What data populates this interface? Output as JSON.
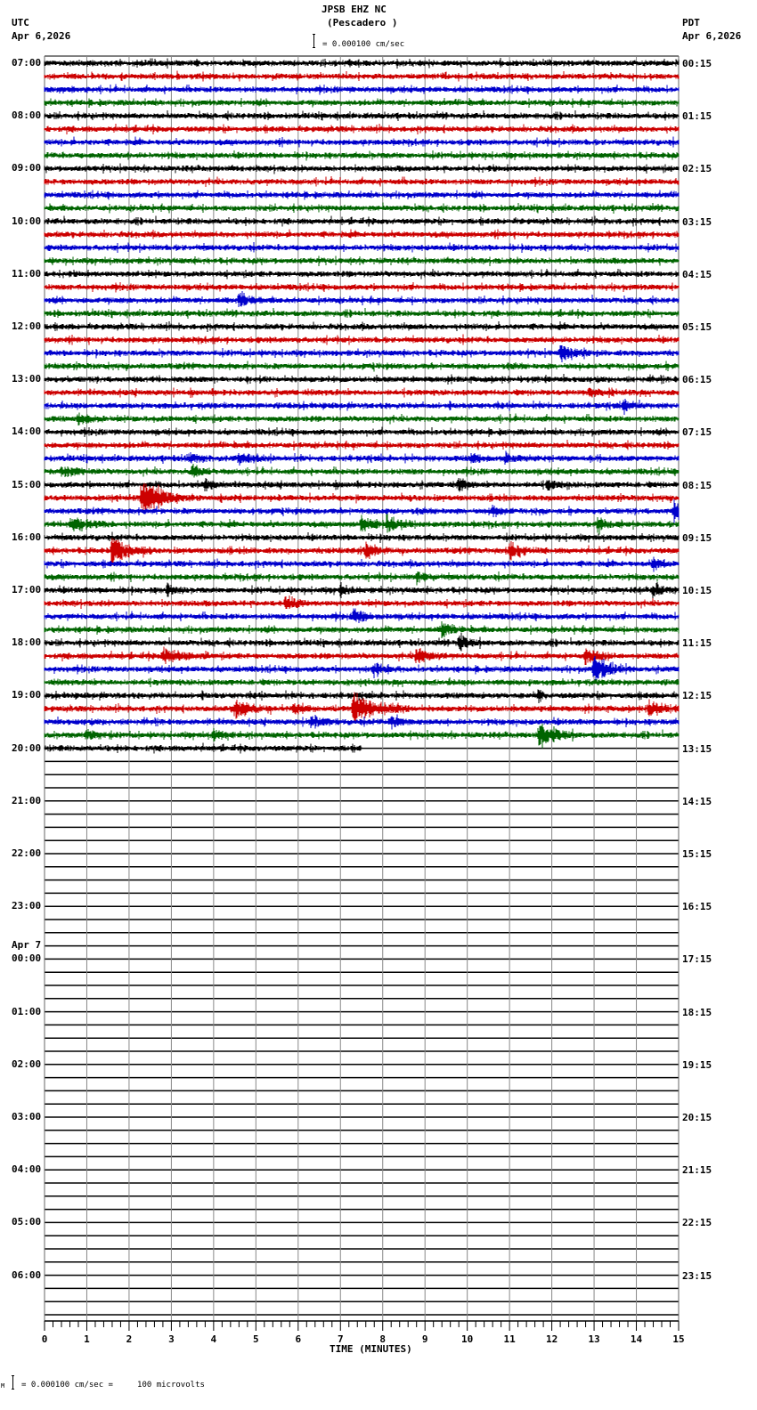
{
  "header": {
    "station": "JPSB EHZ NC",
    "location": "(Pescadero )",
    "left_tz": "UTC",
    "left_date": "Apr 6,2026",
    "right_tz": "PDT",
    "right_date": "Apr 6,2026",
    "scale_text": "= 0.000100 cm/sec"
  },
  "footer": {
    "scale_text": "= 0.000100 cm/sec =     100 microvolts",
    "prefix": "M"
  },
  "colors": {
    "trace_cycle": [
      "#000000",
      "#cc0000",
      "#0000cc",
      "#006400"
    ],
    "grid": "#808080",
    "frame": "#000000"
  },
  "chart_data": {
    "type": "helicorder",
    "title": "JPSB EHZ NC (Pescadero )",
    "xlabel": "TIME (MINUTES)",
    "ylabel_left": "UTC",
    "ylabel_right": "PDT",
    "xlim": [
      0,
      15
    ],
    "x_ticks": [
      "0",
      "1",
      "2",
      "3",
      "4",
      "5",
      "6",
      "7",
      "8",
      "9",
      "10",
      "11",
      "12",
      "13",
      "14",
      "15"
    ],
    "minor_ticks_per_minute": 4,
    "row_minutes": 15,
    "rows_total": 96,
    "rows_with_data": 53,
    "last_row_data_fraction": 0.5,
    "left_labels": [
      {
        "row": 0,
        "text": "07:00"
      },
      {
        "row": 4,
        "text": "08:00"
      },
      {
        "row": 8,
        "text": "09:00"
      },
      {
        "row": 12,
        "text": "10:00"
      },
      {
        "row": 16,
        "text": "11:00"
      },
      {
        "row": 20,
        "text": "12:00"
      },
      {
        "row": 24,
        "text": "13:00"
      },
      {
        "row": 28,
        "text": "14:00"
      },
      {
        "row": 32,
        "text": "15:00"
      },
      {
        "row": 36,
        "text": "16:00"
      },
      {
        "row": 40,
        "text": "17:00"
      },
      {
        "row": 44,
        "text": "18:00"
      },
      {
        "row": 48,
        "text": "19:00"
      },
      {
        "row": 52,
        "text": "20:00"
      },
      {
        "row": 56,
        "text": "21:00"
      },
      {
        "row": 60,
        "text": "22:00"
      },
      {
        "row": 64,
        "text": "23:00"
      },
      {
        "row": 68,
        "text": "00:00",
        "date": "Apr 7"
      },
      {
        "row": 72,
        "text": "01:00"
      },
      {
        "row": 76,
        "text": "02:00"
      },
      {
        "row": 80,
        "text": "03:00"
      },
      {
        "row": 84,
        "text": "04:00"
      },
      {
        "row": 88,
        "text": "05:00"
      },
      {
        "row": 92,
        "text": "06:00"
      }
    ],
    "right_labels": [
      {
        "row": 0,
        "text": "00:15"
      },
      {
        "row": 4,
        "text": "01:15"
      },
      {
        "row": 8,
        "text": "02:15"
      },
      {
        "row": 12,
        "text": "03:15"
      },
      {
        "row": 16,
        "text": "04:15"
      },
      {
        "row": 20,
        "text": "05:15"
      },
      {
        "row": 24,
        "text": "06:15"
      },
      {
        "row": 28,
        "text": "07:15"
      },
      {
        "row": 32,
        "text": "08:15"
      },
      {
        "row": 36,
        "text": "09:15"
      },
      {
        "row": 40,
        "text": "10:15"
      },
      {
        "row": 44,
        "text": "11:15"
      },
      {
        "row": 48,
        "text": "12:15"
      },
      {
        "row": 52,
        "text": "13:15"
      },
      {
        "row": 56,
        "text": "14:15"
      },
      {
        "row": 60,
        "text": "15:15"
      },
      {
        "row": 64,
        "text": "16:15"
      },
      {
        "row": 68,
        "text": "17:15"
      },
      {
        "row": 72,
        "text": "18:15"
      },
      {
        "row": 76,
        "text": "19:15"
      },
      {
        "row": 80,
        "text": "20:15"
      },
      {
        "row": 84,
        "text": "21:15"
      },
      {
        "row": 88,
        "text": "22:15"
      },
      {
        "row": 92,
        "text": "23:15"
      }
    ],
    "events": [
      {
        "row": 18,
        "minute": 4.6,
        "amp": 10,
        "dur": 0.3
      },
      {
        "row": 22,
        "minute": 12.2,
        "amp": 10,
        "dur": 0.5
      },
      {
        "row": 25,
        "minute": 12.9,
        "amp": 5,
        "dur": 0.3
      },
      {
        "row": 26,
        "minute": 13.7,
        "amp": 8,
        "dur": 0.3
      },
      {
        "row": 27,
        "minute": 0.8,
        "amp": 7,
        "dur": 0.4
      },
      {
        "row": 30,
        "minute": 3.4,
        "amp": 6,
        "dur": 0.3
      },
      {
        "row": 30,
        "minute": 4.6,
        "amp": 7,
        "dur": 0.4
      },
      {
        "row": 30,
        "minute": 10.1,
        "amp": 6,
        "dur": 0.3
      },
      {
        "row": 30,
        "minute": 10.9,
        "amp": 7,
        "dur": 0.3
      },
      {
        "row": 31,
        "minute": 0.4,
        "amp": 6,
        "dur": 0.5
      },
      {
        "row": 31,
        "minute": 3.5,
        "amp": 8,
        "dur": 0.3
      },
      {
        "row": 32,
        "minute": 3.8,
        "amp": 7,
        "dur": 0.3
      },
      {
        "row": 32,
        "minute": 9.8,
        "amp": 8,
        "dur": 0.3
      },
      {
        "row": 32,
        "minute": 11.9,
        "amp": 6,
        "dur": 0.3
      },
      {
        "row": 33,
        "minute": 2.3,
        "amp": 24,
        "dur": 0.7
      },
      {
        "row": 34,
        "minute": 10.6,
        "amp": 8,
        "dur": 0.3
      },
      {
        "row": 34,
        "minute": 14.9,
        "amp": 12,
        "dur": 0.2
      },
      {
        "row": 35,
        "minute": 0.6,
        "amp": 8,
        "dur": 0.6
      },
      {
        "row": 35,
        "minute": 7.5,
        "amp": 9,
        "dur": 0.3
      },
      {
        "row": 35,
        "minute": 8.1,
        "amp": 10,
        "dur": 0.4
      },
      {
        "row": 35,
        "minute": 13.1,
        "amp": 8,
        "dur": 0.3
      },
      {
        "row": 37,
        "minute": 1.6,
        "amp": 20,
        "dur": 0.5
      },
      {
        "row": 37,
        "minute": 7.6,
        "amp": 10,
        "dur": 0.4
      },
      {
        "row": 37,
        "minute": 11.0,
        "amp": 12,
        "dur": 0.4
      },
      {
        "row": 38,
        "minute": 14.4,
        "amp": 6,
        "dur": 0.3
      },
      {
        "row": 39,
        "minute": 8.8,
        "amp": 6,
        "dur": 0.3
      },
      {
        "row": 40,
        "minute": 2.9,
        "amp": 7,
        "dur": 0.3
      },
      {
        "row": 40,
        "minute": 7.0,
        "amp": 8,
        "dur": 0.3
      },
      {
        "row": 40,
        "minute": 14.4,
        "amp": 9,
        "dur": 0.3
      },
      {
        "row": 41,
        "minute": 5.7,
        "amp": 12,
        "dur": 0.3
      },
      {
        "row": 42,
        "minute": 7.3,
        "amp": 8,
        "dur": 0.4
      },
      {
        "row": 43,
        "minute": 9.4,
        "amp": 11,
        "dur": 0.3
      },
      {
        "row": 44,
        "minute": 9.8,
        "amp": 9,
        "dur": 0.3
      },
      {
        "row": 45,
        "minute": 2.8,
        "amp": 8,
        "dur": 0.6
      },
      {
        "row": 45,
        "minute": 8.8,
        "amp": 12,
        "dur": 0.4
      },
      {
        "row": 45,
        "minute": 12.8,
        "amp": 10,
        "dur": 0.4
      },
      {
        "row": 46,
        "minute": 7.8,
        "amp": 8,
        "dur": 0.3
      },
      {
        "row": 46,
        "minute": 13.0,
        "amp": 18,
        "dur": 0.5
      },
      {
        "row": 48,
        "minute": 11.7,
        "amp": 10,
        "dur": 0.1
      },
      {
        "row": 49,
        "minute": 4.5,
        "amp": 12,
        "dur": 0.5
      },
      {
        "row": 49,
        "minute": 5.9,
        "amp": 6,
        "dur": 0.3
      },
      {
        "row": 49,
        "minute": 7.3,
        "amp": 20,
        "dur": 0.8
      },
      {
        "row": 49,
        "minute": 14.3,
        "amp": 10,
        "dur": 0.4
      },
      {
        "row": 50,
        "minute": 6.3,
        "amp": 6,
        "dur": 0.4
      },
      {
        "row": 50,
        "minute": 8.2,
        "amp": 8,
        "dur": 0.3
      },
      {
        "row": 51,
        "minute": 1.0,
        "amp": 7,
        "dur": 0.3
      },
      {
        "row": 51,
        "minute": 4.0,
        "amp": 6,
        "dur": 0.3
      },
      {
        "row": 51,
        "minute": 11.7,
        "amp": 16,
        "dur": 0.5
      }
    ]
  }
}
